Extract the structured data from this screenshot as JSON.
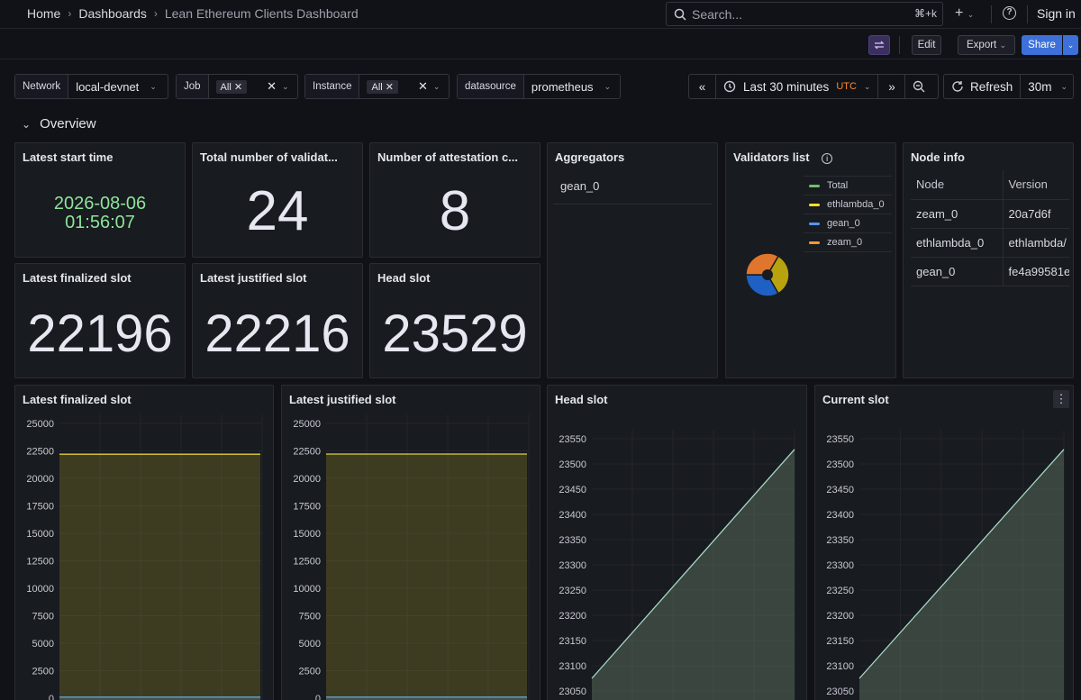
{
  "breadcrumb": [
    "Home",
    "Dashboards",
    "Lean Ethereum Clients Dashboard"
  ],
  "search": {
    "placeholder": "Search...",
    "shortcut": "⌘+k"
  },
  "header": {
    "signin": "Sign in",
    "plus": "+"
  },
  "toolbar": {
    "edit": "Edit",
    "export": "Export",
    "share": "Share"
  },
  "variables": [
    {
      "label": "Network",
      "value": "local-devnet"
    },
    {
      "label": "Job",
      "value": "All"
    },
    {
      "label": "Instance",
      "value": "All"
    },
    {
      "label": "datasource",
      "value": "prometheus"
    }
  ],
  "time": {
    "range": "Last 30 minutes",
    "tz": "UTC",
    "refresh": "Refresh",
    "interval": "30m"
  },
  "section": {
    "title": "Overview"
  },
  "stats": {
    "start_time": {
      "title": "Latest start time",
      "date": "2026-08-06",
      "time": "01:56:07"
    },
    "validators": {
      "title": "Total number of validat...",
      "value": "24"
    },
    "attestation": {
      "title": "Number of attestation c...",
      "value": "8"
    },
    "finalized": {
      "title": "Latest finalized slot",
      "value": "22196"
    },
    "justified": {
      "title": "Latest justified slot",
      "value": "22216"
    },
    "head": {
      "title": "Head slot",
      "value": "23529"
    }
  },
  "aggregators": {
    "title": "Aggregators",
    "items": [
      "gean_0"
    ]
  },
  "validators_list": {
    "title": "Validators list",
    "legend": [
      {
        "name": "Total",
        "color": "#73bf69"
      },
      {
        "name": "ethlambda_0",
        "color": "#fade2a"
      },
      {
        "name": "gean_0",
        "color": "#5794f2"
      },
      {
        "name": "zeam_0",
        "color": "#ff9830"
      }
    ],
    "pie_colors": [
      "#b8a30f",
      "#1f60c4",
      "#e0752d"
    ]
  },
  "node_info": {
    "title": "Node info",
    "columns": [
      "Node",
      "Version"
    ],
    "rows": [
      [
        "zeam_0",
        "20a7d6f"
      ],
      [
        "ethlambda_0",
        "ethlambda/"
      ],
      [
        "gean_0",
        "fe4a99581e"
      ]
    ]
  },
  "chart_data": [
    {
      "type": "area",
      "title": "Latest finalized slot",
      "y_ticks": [
        "25000",
        "22500",
        "20000",
        "17500",
        "15000",
        "12500",
        "10000",
        "7500",
        "5000",
        "2500",
        "0"
      ],
      "ylim": [
        0,
        25000
      ],
      "series": [
        {
          "values": [
            22196,
            22196
          ]
        },
        {
          "values": [
            100,
            100
          ]
        }
      ]
    },
    {
      "type": "area",
      "title": "Latest justified slot",
      "y_ticks": [
        "25000",
        "22500",
        "20000",
        "17500",
        "15000",
        "12500",
        "10000",
        "7500",
        "5000",
        "2500",
        "0"
      ],
      "ylim": [
        0,
        25000
      ],
      "series": [
        {
          "values": [
            22216,
            22216
          ]
        },
        {
          "values": [
            100,
            100
          ]
        }
      ]
    },
    {
      "type": "area",
      "title": "Head slot",
      "y_ticks": [
        "23550",
        "23500",
        "23450",
        "23400",
        "23350",
        "23300",
        "23250",
        "23200",
        "23150",
        "23100",
        "23050"
      ],
      "ylim": [
        23050,
        23550
      ],
      "series": [
        {
          "values": [
            23075,
            23529
          ]
        }
      ]
    },
    {
      "type": "area",
      "title": "Current slot",
      "y_ticks": [
        "23550",
        "23500",
        "23450",
        "23400",
        "23350",
        "23300",
        "23250",
        "23200",
        "23150",
        "23100",
        "23050"
      ],
      "ylim": [
        23050,
        23550
      ],
      "series": [
        {
          "values": [
            23075,
            23529
          ]
        }
      ]
    }
  ]
}
